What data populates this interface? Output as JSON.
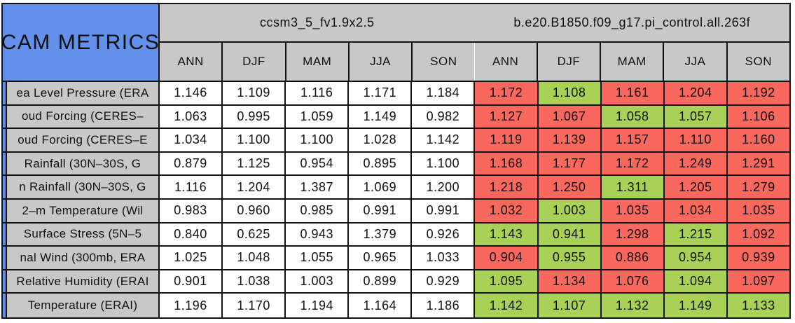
{
  "colors": {
    "header_blue": "#6290EA",
    "header_gray": "#C8C8C8",
    "metric_red": "#F9685E",
    "metric_green": "#A9D158",
    "border": "#111111"
  },
  "chart_data": {
    "type": "table",
    "title": "CAM METRICS",
    "cases": [
      {
        "label": "ccsm3_5_fv1.9x2.5"
      },
      {
        "label": "b.e20.B1850.f09_g17.pi_control.all.263f"
      }
    ],
    "seasons": [
      "ANN",
      "DJF",
      "MAM",
      "JJA",
      "SON"
    ],
    "color_coding_note": "case2 cells shaded red or green; case1 cells white",
    "rows": [
      {
        "label": "ea Level Pressure (ERA",
        "case1_values": [
          "1.146",
          "1.109",
          "1.116",
          "1.171",
          "1.184"
        ],
        "case2_values": [
          "1.172",
          "1.108",
          "1.161",
          "1.204",
          "1.192"
        ],
        "case2_colors": [
          "red",
          "green",
          "red",
          "red",
          "red"
        ]
      },
      {
        "label": "oud Forcing (CERES–",
        "case1_values": [
          "1.063",
          "0.995",
          "1.059",
          "1.149",
          "0.982"
        ],
        "case2_values": [
          "1.127",
          "1.067",
          "1.058",
          "1.057",
          "1.106"
        ],
        "case2_colors": [
          "red",
          "red",
          "green",
          "green",
          "red"
        ]
      },
      {
        "label": "oud Forcing (CERES–E",
        "case1_values": [
          "1.034",
          "1.100",
          "1.100",
          "1.028",
          "1.142"
        ],
        "case2_values": [
          "1.119",
          "1.139",
          "1.157",
          "1.110",
          "1.160"
        ],
        "case2_colors": [
          "red",
          "red",
          "red",
          "red",
          "red"
        ]
      },
      {
        "label": "Rainfall (30N–30S, G",
        "case1_values": [
          "0.879",
          "1.125",
          "0.954",
          "0.895",
          "1.100"
        ],
        "case2_values": [
          "1.168",
          "1.177",
          "1.172",
          "1.249",
          "1.291"
        ],
        "case2_colors": [
          "red",
          "red",
          "red",
          "red",
          "red"
        ]
      },
      {
        "label": "n Rainfall (30N–30S, G",
        "case1_values": [
          "1.116",
          "1.204",
          "1.387",
          "1.069",
          "1.200"
        ],
        "case2_values": [
          "1.218",
          "1.250",
          "1.311",
          "1.205",
          "1.279"
        ],
        "case2_colors": [
          "red",
          "red",
          "green",
          "red",
          "red"
        ]
      },
      {
        "label": "2–m Temperature (Wil",
        "case1_values": [
          "0.983",
          "0.960",
          "0.985",
          "0.991",
          "0.991"
        ],
        "case2_values": [
          "1.032",
          "1.003",
          "1.035",
          "1.034",
          "1.035"
        ],
        "case2_colors": [
          "red",
          "green",
          "red",
          "red",
          "red"
        ]
      },
      {
        "label": "Surface Stress (5N–5",
        "case1_values": [
          "0.840",
          "0.625",
          "0.943",
          "1.379",
          "0.926"
        ],
        "case2_values": [
          "1.143",
          "0.941",
          "1.298",
          "1.215",
          "1.092"
        ],
        "case2_colors": [
          "green",
          "green",
          "red",
          "green",
          "red"
        ]
      },
      {
        "label": "nal Wind (300mb, ERA",
        "case1_values": [
          "1.025",
          "1.048",
          "1.055",
          "0.965",
          "1.033"
        ],
        "case2_values": [
          "0.904",
          "0.955",
          "0.886",
          "0.954",
          "0.939"
        ],
        "case2_colors": [
          "red",
          "green",
          "red",
          "green",
          "red"
        ]
      },
      {
        "label": "Relative Humidity (ERAI",
        "case1_values": [
          "0.901",
          "1.038",
          "1.003",
          "0.899",
          "0.929"
        ],
        "case2_values": [
          "1.095",
          "1.134",
          "1.076",
          "1.094",
          "1.097"
        ],
        "case2_colors": [
          "green",
          "red",
          "red",
          "green",
          "red"
        ]
      },
      {
        "label": "Temperature (ERAI)",
        "case1_values": [
          "1.196",
          "1.170",
          "1.194",
          "1.164",
          "1.186"
        ],
        "case2_values": [
          "1.142",
          "1.107",
          "1.132",
          "1.149",
          "1.133"
        ],
        "case2_colors": [
          "green",
          "green",
          "green",
          "green",
          "green"
        ]
      }
    ]
  }
}
